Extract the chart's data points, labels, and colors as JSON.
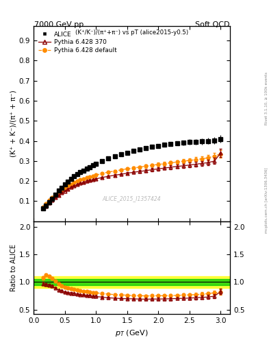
{
  "title_top": "7000 GeV pp",
  "title_right": "Soft QCD",
  "subtitle": "(K⁺/K⁻)/(π⁺+π⁻) vs pT (alice2015-y0.5)",
  "right_label": "Rivet 3.1.10, ≥ 100k events",
  "right_label2": "mcplots.cern.ch [arXiv:1306.3436]",
  "watermark": "ALICE_2015_I1357424",
  "ylabel_main": "(K⁺ + K⁻)/(π⁺ + π⁻)",
  "ylabel_ratio": "Ratio to ALICE",
  "xlabel": "$p_{T}$ (GeV)",
  "xlim": [
    0.0,
    3.15
  ],
  "ylim_main": [
    0.0,
    0.97
  ],
  "ylim_ratio": [
    0.42,
    2.1
  ],
  "alice_pt": [
    0.15,
    0.2,
    0.25,
    0.3,
    0.35,
    0.4,
    0.45,
    0.5,
    0.55,
    0.6,
    0.65,
    0.7,
    0.75,
    0.8,
    0.85,
    0.9,
    0.95,
    1.0,
    1.1,
    1.2,
    1.3,
    1.4,
    1.5,
    1.6,
    1.7,
    1.8,
    1.9,
    2.0,
    2.1,
    2.2,
    2.3,
    2.4,
    2.5,
    2.6,
    2.7,
    2.8,
    2.9,
    3.0
  ],
  "alice_y": [
    0.065,
    0.078,
    0.095,
    0.113,
    0.132,
    0.152,
    0.168,
    0.184,
    0.198,
    0.211,
    0.223,
    0.234,
    0.244,
    0.253,
    0.262,
    0.27,
    0.278,
    0.285,
    0.3,
    0.313,
    0.323,
    0.333,
    0.342,
    0.35,
    0.358,
    0.365,
    0.371,
    0.376,
    0.381,
    0.385,
    0.388,
    0.391,
    0.394,
    0.396,
    0.398,
    0.4,
    0.402,
    0.41
  ],
  "alice_yerr": [
    0.003,
    0.003,
    0.003,
    0.003,
    0.004,
    0.004,
    0.004,
    0.004,
    0.004,
    0.004,
    0.004,
    0.005,
    0.005,
    0.005,
    0.005,
    0.005,
    0.005,
    0.005,
    0.005,
    0.006,
    0.006,
    0.007,
    0.007,
    0.007,
    0.008,
    0.008,
    0.009,
    0.009,
    0.01,
    0.01,
    0.011,
    0.012,
    0.013,
    0.014,
    0.015,
    0.016,
    0.017,
    0.02
  ],
  "p370_pt": [
    0.15,
    0.2,
    0.25,
    0.3,
    0.35,
    0.4,
    0.45,
    0.5,
    0.55,
    0.6,
    0.65,
    0.7,
    0.75,
    0.8,
    0.85,
    0.9,
    0.95,
    1.0,
    1.1,
    1.2,
    1.3,
    1.4,
    1.5,
    1.6,
    1.7,
    1.8,
    1.9,
    2.0,
    2.1,
    2.2,
    2.3,
    2.4,
    2.5,
    2.6,
    2.7,
    2.8,
    2.9,
    3.0
  ],
  "p370_y": [
    0.063,
    0.075,
    0.09,
    0.105,
    0.118,
    0.13,
    0.141,
    0.151,
    0.16,
    0.169,
    0.176,
    0.183,
    0.189,
    0.194,
    0.199,
    0.203,
    0.207,
    0.211,
    0.218,
    0.224,
    0.229,
    0.234,
    0.239,
    0.244,
    0.248,
    0.252,
    0.257,
    0.261,
    0.265,
    0.269,
    0.273,
    0.276,
    0.28,
    0.284,
    0.288,
    0.292,
    0.3,
    0.34
  ],
  "p370_yerr": [
    0.002,
    0.002,
    0.002,
    0.002,
    0.002,
    0.003,
    0.003,
    0.003,
    0.003,
    0.003,
    0.003,
    0.003,
    0.003,
    0.003,
    0.004,
    0.004,
    0.004,
    0.004,
    0.004,
    0.005,
    0.005,
    0.005,
    0.006,
    0.006,
    0.006,
    0.007,
    0.007,
    0.008,
    0.008,
    0.009,
    0.009,
    0.01,
    0.011,
    0.012,
    0.013,
    0.014,
    0.015,
    0.02
  ],
  "pdef_pt": [
    0.15,
    0.2,
    0.25,
    0.3,
    0.35,
    0.4,
    0.45,
    0.5,
    0.55,
    0.6,
    0.65,
    0.7,
    0.75,
    0.8,
    0.85,
    0.9,
    0.95,
    1.0,
    1.1,
    1.2,
    1.3,
    1.4,
    1.5,
    1.6,
    1.7,
    1.8,
    1.9,
    2.0,
    2.1,
    2.2,
    2.3,
    2.4,
    2.5,
    2.6,
    2.7,
    2.8,
    2.9,
    3.0
  ],
  "pdef_y": [
    0.07,
    0.088,
    0.105,
    0.12,
    0.134,
    0.147,
    0.157,
    0.167,
    0.176,
    0.185,
    0.193,
    0.2,
    0.206,
    0.212,
    0.217,
    0.222,
    0.226,
    0.23,
    0.238,
    0.245,
    0.25,
    0.256,
    0.261,
    0.265,
    0.27,
    0.274,
    0.279,
    0.283,
    0.287,
    0.291,
    0.295,
    0.299,
    0.303,
    0.307,
    0.311,
    0.316,
    0.325,
    0.335
  ],
  "pdef_yerr": [
    0.002,
    0.002,
    0.002,
    0.002,
    0.002,
    0.003,
    0.003,
    0.003,
    0.003,
    0.003,
    0.003,
    0.003,
    0.003,
    0.003,
    0.004,
    0.004,
    0.004,
    0.004,
    0.004,
    0.005,
    0.005,
    0.005,
    0.006,
    0.006,
    0.006,
    0.007,
    0.007,
    0.008,
    0.008,
    0.009,
    0.009,
    0.01,
    0.011,
    0.012,
    0.013,
    0.014,
    0.015,
    0.02
  ],
  "alice_color": "#000000",
  "p370_color": "#8B0000",
  "pdef_color": "#FF8C00",
  "band_green_half": 0.05,
  "band_yellow_half": 0.1,
  "yticks_main": [
    0.1,
    0.2,
    0.3,
    0.4,
    0.5,
    0.6,
    0.7,
    0.8,
    0.9
  ],
  "yticks_ratio": [
    0.5,
    1.0,
    1.5,
    2.0
  ],
  "xticks": [
    0.0,
    0.5,
    1.0,
    1.5,
    2.0,
    2.5,
    3.0
  ]
}
